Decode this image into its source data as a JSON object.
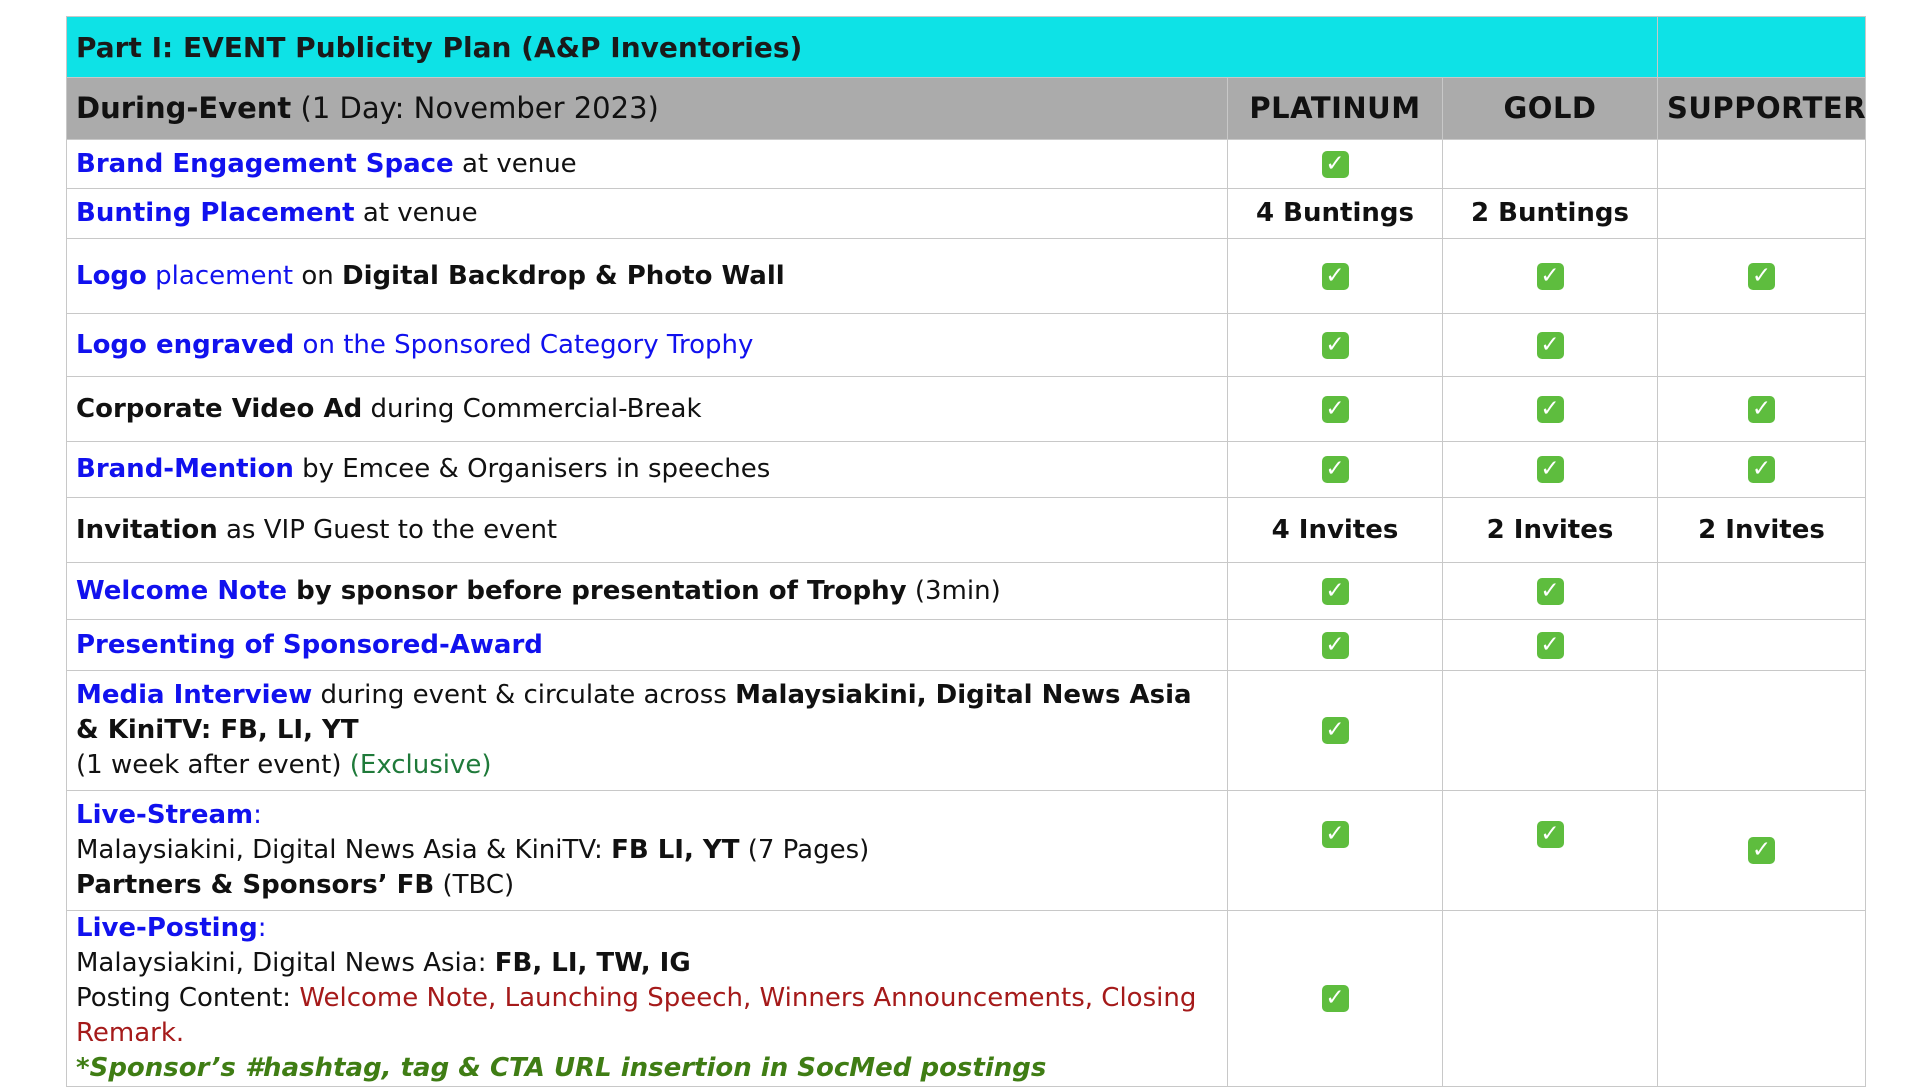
{
  "title": "Part I: EVENT Publicity Plan (A&P Inventories)",
  "header": {
    "section": "During-Event",
    "period": " (1 Day: November 2023)",
    "tiers": [
      "PLATINUM",
      "GOLD",
      "SUPPORTER"
    ]
  },
  "check_icon": "white-heavy-check-mark-icon",
  "check_glyph": "✓",
  "check_color": "#5ebd3e",
  "rows": [
    {
      "parts": [
        "Brand Engagement Space",
        " at venue"
      ],
      "cells": [
        "check",
        "",
        ""
      ]
    },
    {
      "parts": [
        "Bunting Placement",
        " at venue"
      ],
      "cells": [
        "4 Buntings",
        "2 Buntings",
        ""
      ]
    },
    {
      "parts": [
        "Logo",
        " placement",
        " on ",
        "Digital Backdrop & Photo Wall"
      ],
      "cells": [
        "check",
        "check",
        "check"
      ]
    },
    {
      "parts": [
        "Logo engraved",
        " on the Sponsored Category Trophy"
      ],
      "cells": [
        "check",
        "check",
        ""
      ]
    },
    {
      "parts": [
        "Corporate Video Ad",
        " during Commercial-Break"
      ],
      "cells": [
        "check",
        "check",
        "check"
      ]
    },
    {
      "parts": [
        "Brand-Mention",
        " by Emcee & Organisers in speeches"
      ],
      "cells": [
        "check",
        "check",
        "check"
      ]
    },
    {
      "parts": [
        "Invitation",
        " as VIP Guest to the event"
      ],
      "cells": [
        "4 Invites",
        "2 Invites",
        "2 Invites"
      ]
    },
    {
      "parts": [
        "Welcome Note",
        " by sponsor before presentation of Trophy",
        " (3min)"
      ],
      "cells": [
        "check",
        "check",
        ""
      ]
    },
    {
      "parts": [
        "Presenting of Sponsored-Award"
      ],
      "cells": [
        "check",
        "check",
        ""
      ]
    },
    {
      "parts": [
        "Media Interview",
        " during event & circulate across ",
        "Malaysiakini, Digital News Asia & KiniTV: FB, LI, YT",
        "(1 week after event) ",
        "(Exclusive)"
      ],
      "cells": [
        "check",
        "",
        ""
      ]
    },
    {
      "parts": [
        "Live-Stream",
        ":",
        "Malaysiakini, Digital News Asia & KiniTV: ",
        "FB LI, YT",
        " (7 Pages)",
        "Partners & Sponsors’ FB",
        " (TBC)"
      ],
      "cells": [
        "check",
        "check",
        "check"
      ]
    },
    {
      "parts": [
        "Live-Posting",
        ":",
        "Malaysiakini, Digital News Asia: ",
        "FB, LI, TW, IG",
        "Posting Content: ",
        "Welcome Note, Launching Speech, Winners Announcements, Closing Remark.",
        "*Sponsor’s #hashtag, tag & CTA URL insertion in SocMed postings"
      ],
      "cells": [
        "check",
        "",
        ""
      ]
    }
  ]
}
